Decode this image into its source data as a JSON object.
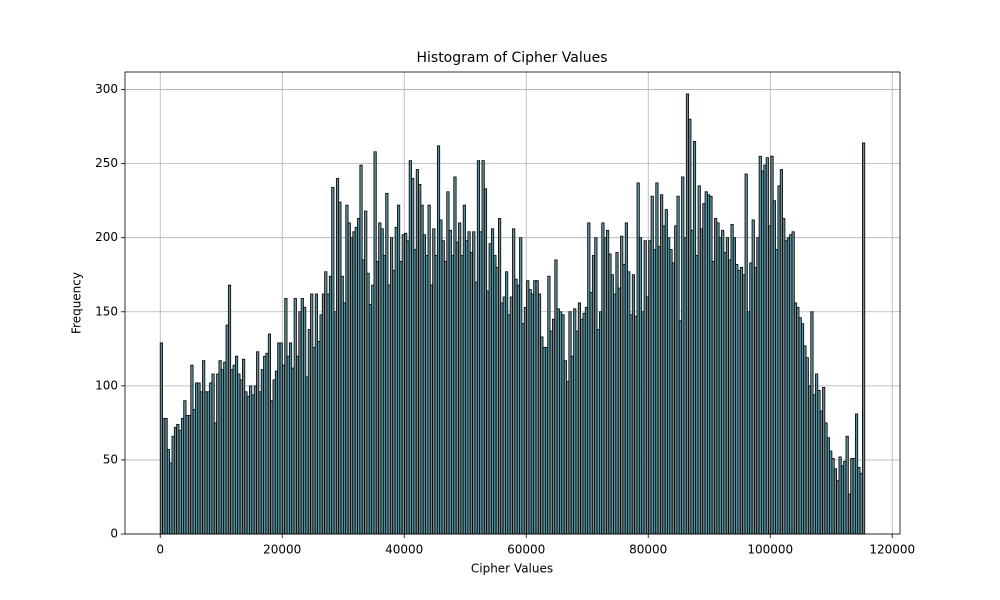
{
  "chart_data": {
    "type": "histogram",
    "title": "Histogram of Cipher Values",
    "xlabel": "Cipher Values",
    "ylabel": "Frequency",
    "bins": [
      0,
      385,
      770,
      1155,
      1540,
      1925,
      2310,
      2695,
      3080,
      3465,
      3850,
      4235,
      4620,
      5005,
      5390,
      5775,
      6160,
      6545,
      6930,
      7315,
      7700,
      8085,
      8470,
      8855,
      9240,
      9625,
      10010,
      10395,
      10780,
      11165,
      11550,
      11935,
      12320,
      12705,
      13090,
      13475,
      13860,
      14245,
      14630,
      15015,
      15400,
      15785,
      16170,
      16555,
      16940,
      17325,
      17710,
      18095,
      18480,
      18865,
      19250,
      19635,
      20020,
      20405,
      20790,
      21175,
      21560,
      21945,
      22330,
      22715,
      23100,
      23485,
      23870,
      24255,
      24640,
      25025,
      25410,
      25795,
      26180,
      26565,
      26950,
      27335,
      27720,
      28105,
      28490,
      28875,
      29260,
      29645,
      30030,
      30415,
      30800,
      31185,
      31570,
      31955,
      32340,
      32725,
      33110,
      33495,
      33880,
      34265,
      34650,
      35035,
      35420,
      35805,
      36190,
      36575,
      36960,
      37345,
      37730,
      38115,
      38500,
      38885,
      39270,
      39655,
      40040,
      40425,
      40810,
      41195,
      41580,
      41965,
      42350,
      42735,
      43120,
      43505,
      43890,
      44275,
      44660,
      45045,
      45430,
      45815,
      46200,
      46585,
      46970,
      47355,
      47740,
      48125,
      48510,
      48895,
      49280,
      49665,
      50050,
      50435,
      50820,
      51205,
      51590,
      51975,
      52360,
      52745,
      53130,
      53515,
      53900,
      54285,
      54670,
      55055,
      55440,
      55825,
      56210,
      56595,
      56980,
      57365,
      57750,
      58135,
      58520,
      58905,
      59290,
      59675,
      60060,
      60445,
      60830,
      61215,
      61600,
      61985,
      62370,
      62755,
      63140,
      63525,
      63910,
      64295,
      64680,
      65065,
      65450,
      65835,
      66220,
      66605,
      66990,
      67375,
      67760,
      68145,
      68530,
      68915,
      69300,
      69685,
      70070,
      70455,
      70840,
      71225,
      71610,
      71995,
      72380,
      72765,
      73150,
      73535,
      73920,
      74305,
      74690,
      75075,
      75460,
      75845,
      76230,
      76615,
      77000,
      77385,
      77770,
      78155,
      78540,
      78925,
      79310,
      79695,
      80080,
      80465,
      80850,
      81235,
      81620,
      82005,
      82390,
      82775,
      83160,
      83545,
      83930,
      84315,
      84700,
      85085,
      85470,
      85855,
      86240,
      86625,
      87010,
      87395,
      87780,
      88165,
      88550,
      88935,
      89320,
      89705,
      90090,
      90475,
      90860,
      91245,
      91630,
      92015,
      92400,
      92785,
      93170,
      93555,
      93940,
      94325,
      94710,
      95095,
      95480,
      95865,
      96250,
      96635,
      97020,
      97405,
      97790,
      98175,
      98560,
      98945,
      99330,
      99715,
      100100,
      100485,
      100870,
      101255,
      101640,
      102025,
      102410,
      102795,
      103180,
      103565,
      103950,
      104335,
      104720,
      105105,
      105490,
      105875,
      106260,
      106645,
      107030,
      107415,
      107800,
      108185,
      108570,
      108955,
      109340,
      109725,
      110110,
      110495,
      110880,
      111265,
      111650,
      112035,
      112420,
      112805,
      113190,
      113575,
      113960,
      114345,
      114730,
      115115,
      115500
    ],
    "values": [
      129,
      78,
      78,
      57,
      48,
      66,
      72,
      74,
      70,
      78,
      90,
      80,
      80,
      114,
      84,
      102,
      102,
      96,
      117,
      96,
      96,
      102,
      108,
      75,
      108,
      117,
      111,
      116,
      141,
      168,
      111,
      114,
      120,
      108,
      104,
      118,
      96,
      93,
      100,
      94,
      100,
      123,
      96,
      111,
      120,
      122,
      135,
      90,
      104,
      110,
      129,
      129,
      114,
      159,
      120,
      129,
      112,
      159,
      120,
      150,
      159,
      153,
      106,
      138,
      162,
      126,
      162,
      130,
      148,
      162,
      177,
      162,
      174,
      234,
      150,
      240,
      224,
      174,
      156,
      222,
      210,
      200,
      204,
      207,
      213,
      249,
      185,
      218,
      176,
      155,
      168,
      258,
      184,
      210,
      206,
      188,
      230,
      168,
      200,
      178,
      207,
      222,
      184,
      202,
      203,
      198,
      252,
      240,
      192,
      246,
      236,
      222,
      202,
      188,
      222,
      168,
      206,
      188,
      262,
      212,
      198,
      184,
      231,
      205,
      188,
      241,
      197,
      210,
      188,
      222,
      198,
      204,
      190,
      204,
      170,
      252,
      204,
      252,
      233,
      164,
      196,
      206,
      188,
      180,
      213,
      156,
      160,
      177,
      148,
      160,
      206,
      172,
      168,
      200,
      142,
      153,
      171,
      165,
      162,
      171,
      171,
      162,
      133,
      126,
      126,
      174,
      137,
      145,
      185,
      152,
      150,
      148,
      117,
      103,
      150,
      120,
      152,
      137,
      156,
      145,
      149,
      153,
      210,
      163,
      188,
      200,
      138,
      150,
      210,
      200,
      205,
      189,
      175,
      162,
      190,
      166,
      201,
      182,
      210,
      177,
      148,
      175,
      147,
      237,
      200,
      150,
      198,
      160,
      198,
      228,
      192,
      237,
      194,
      229,
      208,
      219,
      200,
      192,
      183,
      208,
      228,
      144,
      241,
      200,
      297,
      280,
      205,
      265,
      188,
      235,
      206,
      223,
      231,
      229,
      228,
      184,
      213,
      210,
      200,
      205,
      190,
      200,
      185,
      209,
      200,
      182,
      178,
      180,
      175,
      243,
      150,
      183,
      212,
      180,
      200,
      255,
      245,
      249,
      254,
      208,
      255,
      225,
      192,
      235,
      246,
      213,
      198,
      200,
      202,
      204,
      156,
      153,
      146,
      142,
      127,
      119,
      100,
      150,
      94,
      108,
      97,
      83,
      99,
      75,
      65,
      56,
      51,
      44,
      36,
      52,
      46,
      49,
      66,
      27,
      51,
      51,
      81,
      45,
      41,
      264
    ],
    "color": "#5f8f9a",
    "edgecolor": "#000000",
    "xlim": [
      -5775,
      121275
    ],
    "xticks": [
      0,
      20000,
      40000,
      60000,
      80000,
      100000,
      120000
    ],
    "ylim": [
      0,
      311.85
    ],
    "yticks": [
      0,
      50,
      100,
      150,
      200,
      250,
      300
    ],
    "grid": true
  }
}
